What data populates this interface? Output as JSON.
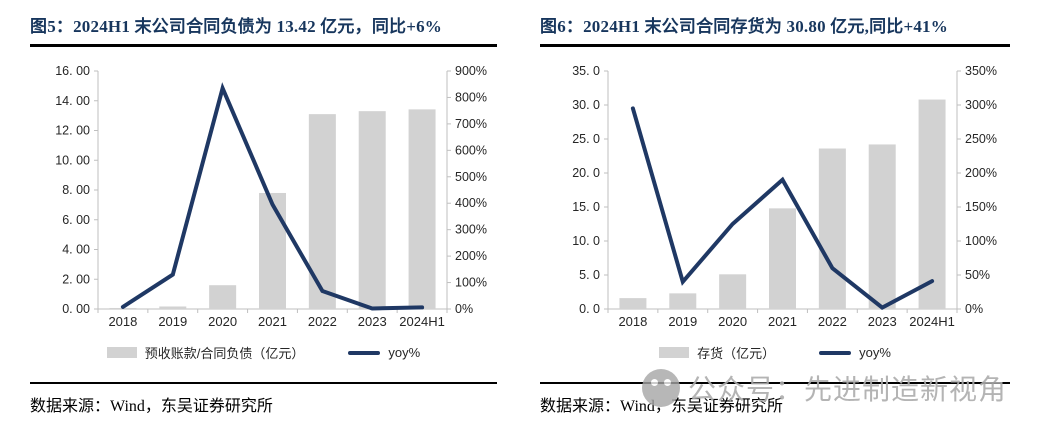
{
  "colors": {
    "title": "#17365D",
    "line": "#1F3864",
    "bar": "#D2D2D2",
    "axis": "#BFBFBF",
    "tick_text": "#262626",
    "watermark": "#ACACAC"
  },
  "panels": [
    {
      "figure_id": "图5",
      "source": "数据来源：Wind，东吴证券研究所"
    },
    {
      "figure_id": "图6",
      "source": "数据来源：Wind，东吴证券研究所"
    }
  ],
  "watermark": {
    "icon": "wechat-logo-icon",
    "text": "公众号：先进制造新视角"
  },
  "chart_data": [
    {
      "type": "bar",
      "title": "图5：2024H1 末公司合同负债为 13.42 亿元，同比+6%",
      "categories": [
        "2018",
        "2019",
        "2020",
        "2021",
        "2022",
        "2023",
        "2024H1"
      ],
      "series": [
        {
          "name": "预收账款/合同负债（亿元）",
          "type": "bar",
          "axis": "left",
          "values": [
            0.07,
            0.17,
            1.6,
            7.8,
            13.1,
            13.3,
            13.42
          ]
        },
        {
          "name": "yoy%",
          "type": "line",
          "axis": "right",
          "values": [
            8,
            130,
            835,
            395,
            68,
            2,
            6
          ]
        }
      ],
      "left_axis": {
        "min": 0,
        "max": 16,
        "ticks_top_to_bottom": [
          "16. 00",
          "14. 00",
          "12. 00",
          "10. 00",
          "8. 00",
          "6. 00",
          "4. 00",
          "2. 00",
          "0. 00"
        ]
      },
      "right_axis": {
        "min": 0,
        "max": 900,
        "unit": "%",
        "ticks_top_to_bottom": [
          "900%",
          "800%",
          "700%",
          "600%",
          "500%",
          "400%",
          "300%",
          "200%",
          "100%",
          "0%"
        ]
      },
      "grid": false,
      "legend_position": "bottom"
    },
    {
      "type": "bar",
      "title": "图6：2024H1 末公司合同存货为 30.80 亿元,同比+41%",
      "categories": [
        "2018",
        "2019",
        "2020",
        "2021",
        "2022",
        "2023",
        "2024H1"
      ],
      "series": [
        {
          "name": "存货（亿元）",
          "type": "bar",
          "axis": "left",
          "values": [
            1.6,
            2.3,
            5.1,
            14.8,
            23.6,
            24.2,
            30.8
          ]
        },
        {
          "name": "yoy%",
          "type": "line",
          "axis": "right",
          "values": [
            295,
            40,
            125,
            190,
            60,
            2,
            41
          ]
        }
      ],
      "left_axis": {
        "min": 0,
        "max": 35,
        "ticks_top_to_bottom": [
          "35. 0",
          "30. 0",
          "25. 0",
          "20. 0",
          "15. 0",
          "10. 0",
          "5. 0",
          "0. 0"
        ]
      },
      "right_axis": {
        "min": 0,
        "max": 350,
        "unit": "%",
        "ticks_top_to_bottom": [
          "350%",
          "300%",
          "250%",
          "200%",
          "150%",
          "100%",
          "50%",
          "0%"
        ]
      },
      "grid": false,
      "legend_position": "bottom"
    }
  ]
}
